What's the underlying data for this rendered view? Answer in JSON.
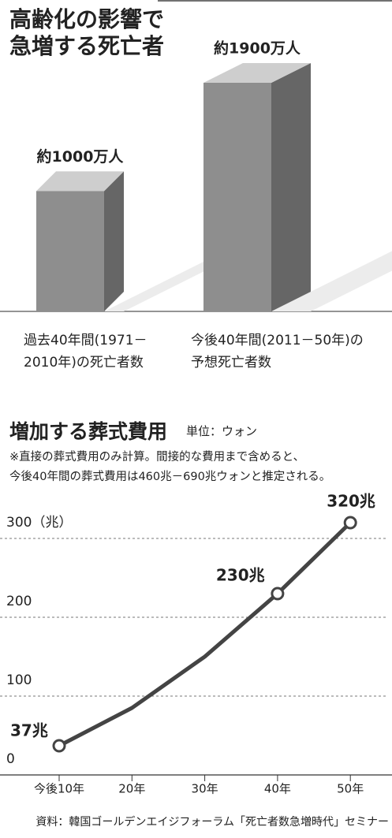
{
  "chart_data": [
    {
      "type": "bar",
      "title": "高齢化の影響で\n急増する死亡者",
      "categories": [
        "過去40年間(1971－\n2010年)の死亡者数",
        "今後40年間(2011－50年)の\n予想死亡者数"
      ],
      "values": [
        1000,
        1900
      ],
      "value_labels": [
        "約1000万人",
        "約1900万人"
      ],
      "color": "#8e8e8e"
    },
    {
      "type": "line",
      "title": "増加する葬式費用",
      "subtitle": "単位：ウォン",
      "note": "※直接の葬式費用のみ計算。間接的な費用まで含めると、\n今後40年間の葬式費用は460兆－690兆ウォンと推定される。",
      "categories": [
        "今後10年",
        "20年",
        "30年",
        "40年",
        "50年"
      ],
      "values": [
        37,
        85,
        150,
        230,
        320
      ],
      "value_labels": [
        "37兆",
        null,
        null,
        "230兆",
        "320兆"
      ],
      "markers": [
        true,
        false,
        false,
        true,
        true
      ],
      "color": "#444444",
      "ylim": [
        0,
        330
      ],
      "yticks": [
        0,
        100,
        200,
        {
          "value": 300,
          "label": "300（兆）"
        }
      ],
      "grid": true,
      "source": "資料：韓国ゴールデンエイジフォーラム「死亡者数急増時代」セミナー"
    }
  ]
}
